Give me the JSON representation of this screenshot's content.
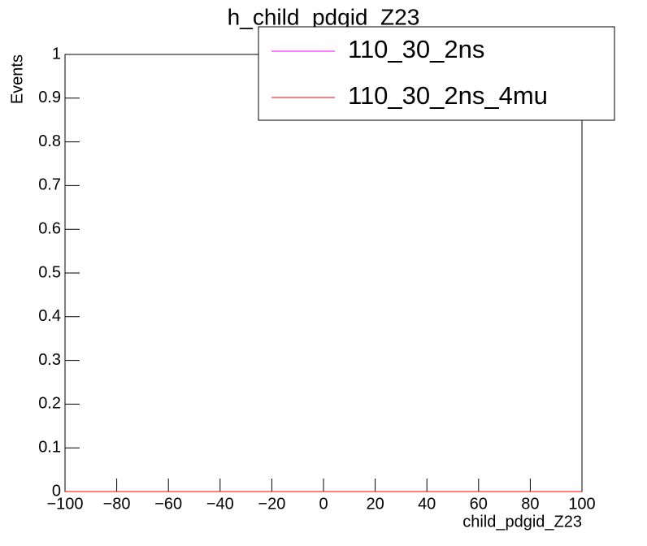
{
  "chart_data": {
    "type": "histogram",
    "title": "h_child_pdgid_Z23",
    "x_label": "child_pdgid_Z23",
    "y_label": "Events",
    "bins": [
      -100,
      100
    ],
    "series": [
      {
        "name": "110_30_2ns",
        "color": "#ff00ff",
        "values": [
          0
        ]
      },
      {
        "name": "110_30_2ns_4mu",
        "color": "#ff0000",
        "values": [
          0
        ]
      }
    ],
    "xlim": [
      -100,
      100
    ],
    "xticks": [
      {
        "value": -100,
        "label": "−100"
      },
      {
        "value": -80,
        "label": "−80"
      },
      {
        "value": -60,
        "label": "−60"
      },
      {
        "value": -40,
        "label": "−40"
      },
      {
        "value": -20,
        "label": "−20"
      },
      0,
      20,
      40,
      60,
      80,
      100
    ],
    "ylim": [
      0,
      1
    ],
    "yticks": [
      0,
      0.1,
      0.2,
      0.3,
      0.4,
      0.5,
      0.6,
      0.7,
      0.8,
      0.9,
      1
    ],
    "legend": "top-right"
  }
}
